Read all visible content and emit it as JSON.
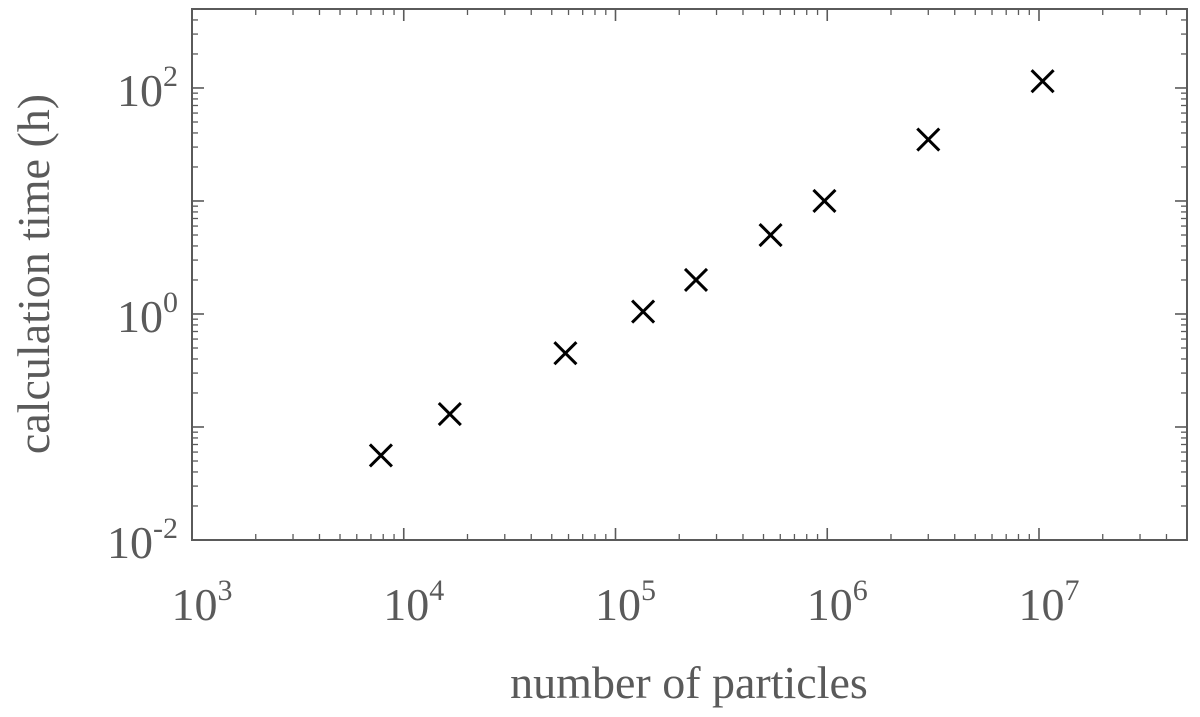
{
  "chart_data": {
    "type": "scatter",
    "xlabel": "number of particles",
    "ylabel": "calculation time (h)",
    "xscale": "log",
    "yscale": "log",
    "xlim": [
      1000,
      50000000
    ],
    "ylim": [
      0.01,
      500
    ],
    "grid": false,
    "marker": "x",
    "marker_color": "#000000",
    "axis_color": "#5a5a5a",
    "x_ticks": [
      {
        "value": 1000,
        "base": "10",
        "exp": "3"
      },
      {
        "value": 10000,
        "base": "10",
        "exp": "4"
      },
      {
        "value": 100000,
        "base": "10",
        "exp": "5"
      },
      {
        "value": 1000000,
        "base": "10",
        "exp": "6"
      },
      {
        "value": 10000000,
        "base": "10",
        "exp": "7"
      }
    ],
    "y_ticks": [
      {
        "value": 0.01,
        "base": "10",
        "exp": "-2"
      },
      {
        "value": 1,
        "base": "10",
        "exp": "0"
      },
      {
        "value": 100,
        "base": "10",
        "exp": "2"
      }
    ],
    "points": [
      {
        "x": 7800,
        "y": 0.056
      },
      {
        "x": 16500,
        "y": 0.13
      },
      {
        "x": 58000,
        "y": 0.45
      },
      {
        "x": 135000,
        "y": 1.05
      },
      {
        "x": 240000,
        "y": 2.0
      },
      {
        "x": 540000,
        "y": 5.0
      },
      {
        "x": 970000,
        "y": 10.0
      },
      {
        "x": 3000000,
        "y": 35.0
      },
      {
        "x": 10400000,
        "y": 115.0
      }
    ]
  }
}
